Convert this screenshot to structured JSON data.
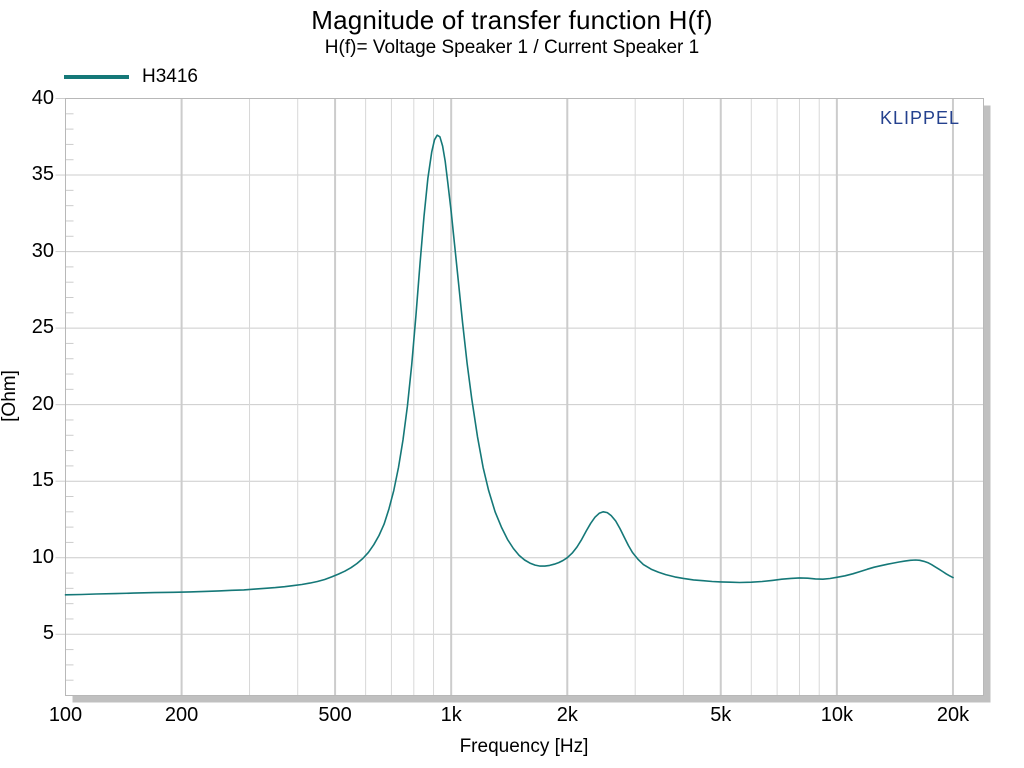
{
  "header": {
    "title": "Magnitude of transfer function H(f)",
    "subtitle": "H(f)= Voltage Speaker 1 / Current Speaker 1"
  },
  "legend": {
    "label": "H3416",
    "color": "#157878"
  },
  "watermark": {
    "text": "KLIPPEL",
    "color": "#24418e"
  },
  "colors": {
    "grid_major": "#cccccc",
    "grid_minor": "#d8d8d8",
    "border": "#b8b8b8",
    "shadow": "#c0c0c0",
    "text": "#000000"
  },
  "chart_data": {
    "type": "line",
    "title": "Magnitude of transfer function H(f)",
    "subtitle": "H(f)= Voltage Speaker 1 / Current Speaker 1",
    "xlabel": "Frequency [Hz]",
    "ylabel": "[Ohm]",
    "x_scale": "log",
    "xlim": [
      100,
      24000
    ],
    "ylim": [
      1,
      40
    ],
    "grid": true,
    "legend_position": "top-left",
    "x_ticks": [
      {
        "f": 100,
        "label": "100"
      },
      {
        "f": 200,
        "label": "200"
      },
      {
        "f": 500,
        "label": "500"
      },
      {
        "f": 1000,
        "label": "1k"
      },
      {
        "f": 2000,
        "label": "2k"
      },
      {
        "f": 5000,
        "label": "5k"
      },
      {
        "f": 10000,
        "label": "10k"
      },
      {
        "f": 20000,
        "label": "20k"
      }
    ],
    "x_minor_gridlines": [
      300,
      400,
      600,
      700,
      800,
      900,
      3000,
      4000,
      6000,
      7000,
      8000,
      9000
    ],
    "y_ticks": [
      5,
      10,
      15,
      20,
      25,
      30,
      35,
      40
    ],
    "y_minor_step": 1,
    "series": [
      {
        "name": "H3416",
        "color": "#157878",
        "points": [
          [
            100,
            7.58
          ],
          [
            110,
            7.6
          ],
          [
            120,
            7.63
          ],
          [
            135,
            7.66
          ],
          [
            150,
            7.69
          ],
          [
            170,
            7.72
          ],
          [
            190,
            7.74
          ],
          [
            210,
            7.77
          ],
          [
            230,
            7.8
          ],
          [
            250,
            7.83
          ],
          [
            270,
            7.87
          ],
          [
            290,
            7.9
          ],
          [
            310,
            7.95
          ],
          [
            330,
            8.0
          ],
          [
            350,
            8.05
          ],
          [
            370,
            8.11
          ],
          [
            390,
            8.18
          ],
          [
            410,
            8.25
          ],
          [
            430,
            8.34
          ],
          [
            450,
            8.45
          ],
          [
            470,
            8.58
          ],
          [
            490,
            8.75
          ],
          [
            510,
            8.93
          ],
          [
            530,
            9.12
          ],
          [
            550,
            9.35
          ],
          [
            570,
            9.62
          ],
          [
            590,
            9.95
          ],
          [
            610,
            10.35
          ],
          [
            630,
            10.85
          ],
          [
            650,
            11.45
          ],
          [
            670,
            12.2
          ],
          [
            690,
            13.2
          ],
          [
            710,
            14.4
          ],
          [
            730,
            15.9
          ],
          [
            750,
            17.7
          ],
          [
            770,
            19.9
          ],
          [
            790,
            22.6
          ],
          [
            810,
            25.8
          ],
          [
            830,
            29.2
          ],
          [
            850,
            32.3
          ],
          [
            870,
            34.8
          ],
          [
            890,
            36.5
          ],
          [
            905,
            37.3
          ],
          [
            920,
            37.6
          ],
          [
            935,
            37.5
          ],
          [
            950,
            36.9
          ],
          [
            965,
            35.9
          ],
          [
            980,
            34.5
          ],
          [
            1000,
            32.6
          ],
          [
            1020,
            30.5
          ],
          [
            1045,
            27.9
          ],
          [
            1070,
            25.4
          ],
          [
            1100,
            22.7
          ],
          [
            1130,
            20.4
          ],
          [
            1170,
            17.9
          ],
          [
            1210,
            15.9
          ],
          [
            1250,
            14.4
          ],
          [
            1300,
            13.0
          ],
          [
            1350,
            12.0
          ],
          [
            1400,
            11.2
          ],
          [
            1450,
            10.6
          ],
          [
            1500,
            10.15
          ],
          [
            1550,
            9.85
          ],
          [
            1600,
            9.65
          ],
          [
            1650,
            9.52
          ],
          [
            1700,
            9.45
          ],
          [
            1750,
            9.45
          ],
          [
            1800,
            9.5
          ],
          [
            1850,
            9.58
          ],
          [
            1900,
            9.68
          ],
          [
            1950,
            9.82
          ],
          [
            2000,
            10.0
          ],
          [
            2060,
            10.3
          ],
          [
            2120,
            10.7
          ],
          [
            2180,
            11.2
          ],
          [
            2240,
            11.75
          ],
          [
            2300,
            12.25
          ],
          [
            2360,
            12.65
          ],
          [
            2420,
            12.9
          ],
          [
            2480,
            13.0
          ],
          [
            2540,
            12.95
          ],
          [
            2600,
            12.75
          ],
          [
            2670,
            12.4
          ],
          [
            2740,
            11.9
          ],
          [
            2810,
            11.35
          ],
          [
            2880,
            10.8
          ],
          [
            2950,
            10.35
          ],
          [
            3050,
            9.9
          ],
          [
            3150,
            9.55
          ],
          [
            3300,
            9.25
          ],
          [
            3450,
            9.05
          ],
          [
            3600,
            8.9
          ],
          [
            3800,
            8.75
          ],
          [
            4000,
            8.65
          ],
          [
            4250,
            8.55
          ],
          [
            4500,
            8.5
          ],
          [
            4750,
            8.45
          ],
          [
            5000,
            8.42
          ],
          [
            5300,
            8.4
          ],
          [
            5600,
            8.38
          ],
          [
            6000,
            8.4
          ],
          [
            6400,
            8.45
          ],
          [
            6800,
            8.52
          ],
          [
            7200,
            8.6
          ],
          [
            7600,
            8.65
          ],
          [
            8000,
            8.68
          ],
          [
            8400,
            8.66
          ],
          [
            8800,
            8.62
          ],
          [
            9200,
            8.6
          ],
          [
            9600,
            8.64
          ],
          [
            10000,
            8.72
          ],
          [
            10500,
            8.82
          ],
          [
            11000,
            8.95
          ],
          [
            11500,
            9.1
          ],
          [
            12000,
            9.25
          ],
          [
            12500,
            9.38
          ],
          [
            13000,
            9.48
          ],
          [
            13500,
            9.57
          ],
          [
            14000,
            9.65
          ],
          [
            14500,
            9.72
          ],
          [
            15000,
            9.78
          ],
          [
            15500,
            9.83
          ],
          [
            16000,
            9.85
          ],
          [
            16400,
            9.83
          ],
          [
            16800,
            9.77
          ],
          [
            17200,
            9.68
          ],
          [
            17600,
            9.55
          ],
          [
            18000,
            9.4
          ],
          [
            18400,
            9.25
          ],
          [
            18800,
            9.1
          ],
          [
            19200,
            8.95
          ],
          [
            19600,
            8.82
          ],
          [
            20000,
            8.7
          ]
        ]
      }
    ]
  }
}
